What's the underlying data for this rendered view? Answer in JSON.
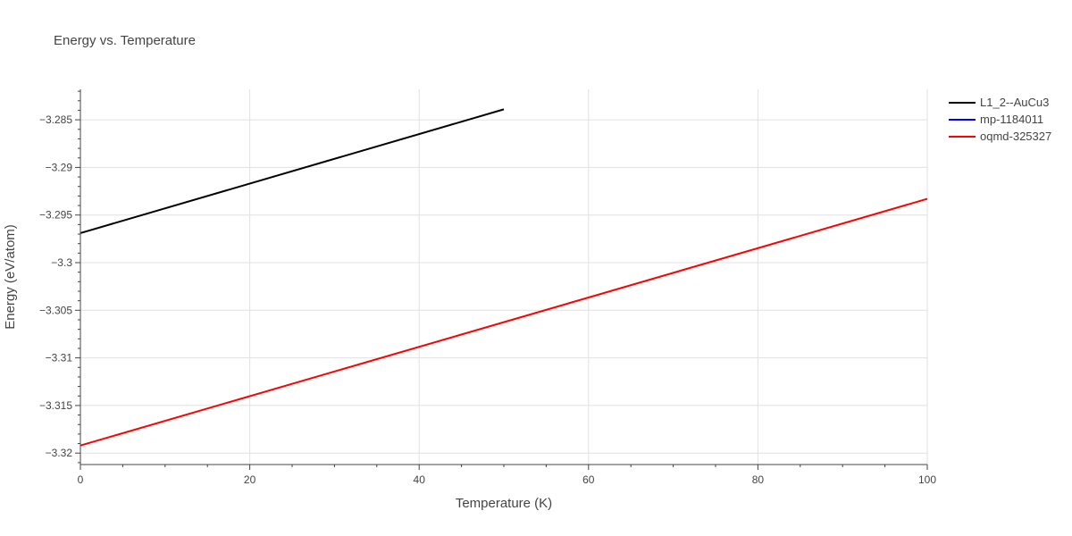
{
  "chart_data": {
    "type": "line",
    "title": "Energy vs. Temperature",
    "xlabel": "Temperature (K)",
    "ylabel": "Energy (eV/atom)",
    "xlim": [
      0,
      100
    ],
    "ylim": [
      -3.3212,
      -3.2818
    ],
    "x_ticks": [
      0,
      20,
      40,
      60,
      80,
      100
    ],
    "x_tick_labels": [
      "0",
      "20",
      "40",
      "60",
      "80",
      "100"
    ],
    "x_minor_step": 5,
    "y_ticks": [
      -3.32,
      -3.315,
      -3.31,
      -3.305,
      -3.3,
      -3.295,
      -3.29,
      -3.285
    ],
    "y_tick_labels": [
      "−3.32",
      "−3.315",
      "−3.31",
      "−3.305",
      "−3.3",
      "−3.295",
      "−3.29",
      "−3.285"
    ],
    "y_minor_step": 0.001,
    "grid": true,
    "legend_position": "top-right",
    "series": [
      {
        "name": "L1_2--AuCu3",
        "color": "#000000",
        "x": [
          0,
          50
        ],
        "y": [
          -3.2969,
          -3.2839
        ]
      },
      {
        "name": "mp-1184011",
        "color": "#0000ff",
        "x": [],
        "y": []
      },
      {
        "name": "oqmd-325327",
        "color": "#ff0000",
        "x": [
          0,
          100
        ],
        "y": [
          -3.3192,
          -3.2933
        ]
      }
    ]
  }
}
